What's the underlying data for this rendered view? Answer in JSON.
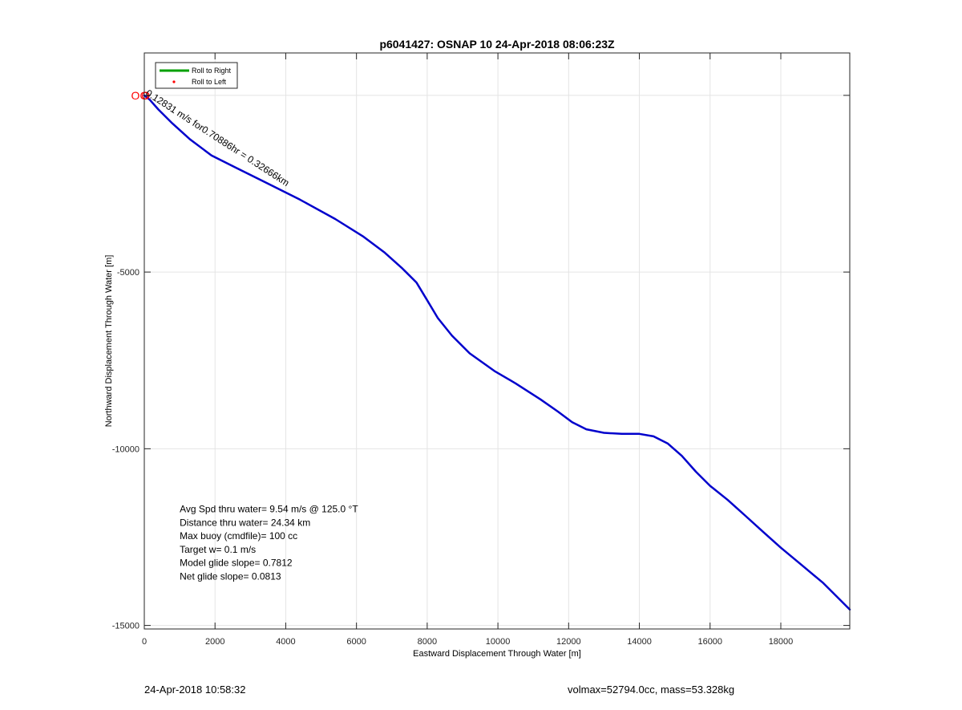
{
  "footer": {
    "timestamp": "24-Apr-2018 10:58:32",
    "volmax_mass": "volmax=52794.0cc, mass=53.328kg"
  },
  "chart_data": {
    "type": "line",
    "title": "p6041427: OSNAP 10 24-Apr-2018 08:06:23Z",
    "xlabel": "Eastward Displacement Through Water [m]",
    "ylabel": "Northward Displacement Through Water [m]",
    "xlim": [
      0,
      19950
    ],
    "ylim": [
      -15100,
      1200
    ],
    "xticks": [
      0,
      2000,
      4000,
      6000,
      8000,
      10000,
      12000,
      14000,
      16000,
      18000
    ],
    "yticks": [
      -15000,
      -10000,
      -5000,
      0
    ],
    "grid": true,
    "legend": {
      "position": "top-left",
      "entries": [
        {
          "label": "Roll to Right",
          "color": "#00a000",
          "marker": "line"
        },
        {
          "label": "Roll to Left",
          "color": "#ff0000",
          "marker": "dot"
        }
      ]
    },
    "series": [
      {
        "color": "#0000cc",
        "x": [
          0,
          150,
          400,
          800,
          1300,
          1900,
          2600,
          3400,
          4400,
          5400,
          6200,
          6800,
          7300,
          7700,
          8000,
          8300,
          8700,
          9200,
          9900,
          10500,
          11200,
          11700,
          12100,
          12500,
          13000,
          13500,
          14000,
          14400,
          14800,
          15200,
          15600,
          16000,
          16500,
          17000,
          17500,
          18000,
          18600,
          19200,
          19600,
          19950
        ],
        "y": [
          0,
          -120,
          -400,
          -800,
          -1250,
          -1700,
          -2050,
          -2450,
          -2950,
          -3500,
          -4000,
          -4450,
          -4900,
          -5300,
          -5800,
          -6300,
          -6800,
          -7300,
          -7800,
          -8150,
          -8600,
          -8950,
          -9250,
          -9450,
          -9550,
          -9580,
          -9580,
          -9650,
          -9850,
          -10200,
          -10650,
          -11050,
          -11450,
          -11900,
          -12350,
          -12800,
          -13300,
          -13800,
          -14200,
          -14550
        ]
      }
    ],
    "annotations": [
      {
        "text": "Avg Spd thru water=  9.54 m/s @ 125.0 °T",
        "x": 1000,
        "y": -11800
      },
      {
        "text": "Distance thru water= 24.34 km",
        "x": 1000,
        "y": -12180
      },
      {
        "text": "Max buoy (cmdfile)= 100 cc",
        "x": 1000,
        "y": -12560
      },
      {
        "text": "Target w= 0.1 m/s",
        "x": 1000,
        "y": -12940
      },
      {
        "text": "Model glide slope= 0.7812",
        "x": 1000,
        "y": -13320
      },
      {
        "text": "Net glide slope= 0.0813",
        "x": 1000,
        "y": -13700
      }
    ],
    "segment_label": {
      "text": "0.12831 m/s for0.70886hr = 0.32666km",
      "x": 20,
      "y": 20,
      "rotation": 33
    },
    "start_markers": [
      {
        "text": "O",
        "x": -250,
        "y": 0,
        "color": "#ff0000"
      },
      {
        "text": "O",
        "x": 0,
        "y": 0,
        "color": "#ff0000"
      },
      {
        "text": "O",
        "x": 40,
        "y": 0,
        "color": "#ff0000"
      }
    ]
  }
}
